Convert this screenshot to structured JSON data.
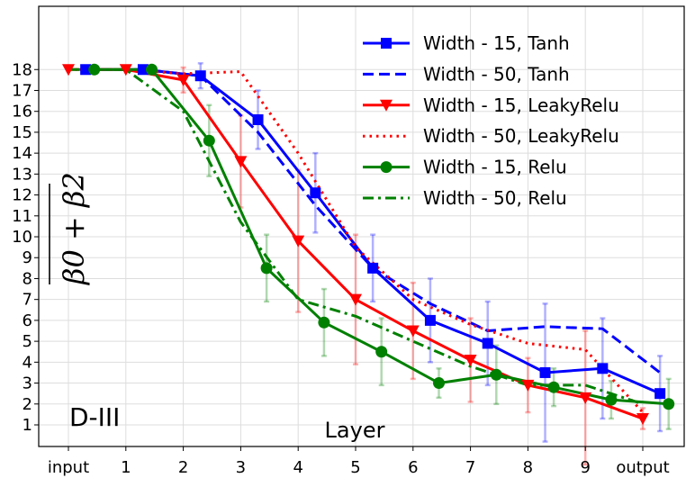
{
  "chart_data": {
    "type": "line",
    "title": "",
    "panel_label": "D-III",
    "xlabel": "Layer",
    "ylabel": "β0 + β2",
    "categories": [
      "input",
      "1",
      "2",
      "3",
      "4",
      "5",
      "6",
      "7",
      "8",
      "9",
      "output"
    ],
    "yticks": [
      1,
      2,
      3,
      4,
      5,
      6,
      7,
      8,
      9,
      10,
      11,
      12,
      13,
      14,
      15,
      16,
      17,
      18
    ],
    "ylim": [
      0,
      19.5
    ],
    "grid": true,
    "legend_position": "top-right",
    "colors": {
      "blue": "#0000ff",
      "red": "#ff0000",
      "green": "#008000"
    },
    "series": [
      {
        "name": "Width - 15, Tanh",
        "color": "#0000ff",
        "line_style": "solid",
        "marker": "square",
        "offset": 0.3,
        "values": [
          18,
          18,
          17.7,
          15.6,
          12.1,
          8.5,
          6.0,
          4.9,
          3.5,
          3.7,
          2.5
        ],
        "errors": [
          0,
          0,
          0.6,
          1.4,
          1.9,
          1.6,
          2.0,
          2.0,
          3.3,
          2.4,
          1.8
        ]
      },
      {
        "name": "Width - 50, Tanh",
        "color": "#0000ff",
        "line_style": "dashed",
        "marker": "none",
        "offset": 0.3,
        "values": [
          18,
          18,
          17.7,
          15.0,
          11.5,
          8.5,
          6.8,
          5.5,
          5.7,
          5.6,
          3.5
        ],
        "errors": [
          0,
          0,
          0,
          0,
          0,
          0,
          0,
          0,
          0,
          0,
          0
        ]
      },
      {
        "name": "Width - 15, LeakyRelu",
        "color": "#ff0000",
        "line_style": "solid",
        "marker": "triangle-down",
        "offset": 0,
        "values": [
          18,
          18,
          17.5,
          13.6,
          9.8,
          7.0,
          5.5,
          4.1,
          2.9,
          2.3,
          1.3
        ],
        "errors": [
          0,
          0,
          0.6,
          2.2,
          3.4,
          3.1,
          2.3,
          2.0,
          1.3,
          3.2,
          0.5
        ]
      },
      {
        "name": "Width - 50, LeakyRelu",
        "color": "#ff0000",
        "line_style": "dotted",
        "marker": "none",
        "offset": 0,
        "values": [
          18,
          18,
          17.8,
          17.9,
          14.0,
          9.5,
          7.0,
          5.8,
          4.9,
          4.6,
          1.6
        ],
        "errors": [
          0,
          0,
          0,
          0,
          0,
          0,
          0,
          0,
          0,
          0,
          0
        ]
      },
      {
        "name": "Width - 15, Relu",
        "color": "#008000",
        "line_style": "solid",
        "marker": "circle",
        "offset": 0.45,
        "values": [
          18,
          18,
          14.6,
          8.5,
          5.9,
          4.5,
          3.0,
          3.4,
          2.8,
          2.2,
          2.0
        ],
        "errors": [
          0,
          0,
          1.7,
          1.6,
          1.6,
          1.6,
          0.7,
          1.4,
          0.9,
          0.9,
          1.2
        ]
      },
      {
        "name": "Width - 50, Relu",
        "color": "#008000",
        "line_style": "dashdot",
        "marker": "none",
        "offset": 0,
        "values": [
          18,
          18,
          16.0,
          10.7,
          7.0,
          6.2,
          5.0,
          3.8,
          2.9,
          2.9,
          2.0
        ],
        "errors": [
          0,
          0,
          0,
          0,
          0,
          0,
          0,
          0,
          0,
          0,
          0
        ]
      }
    ]
  }
}
